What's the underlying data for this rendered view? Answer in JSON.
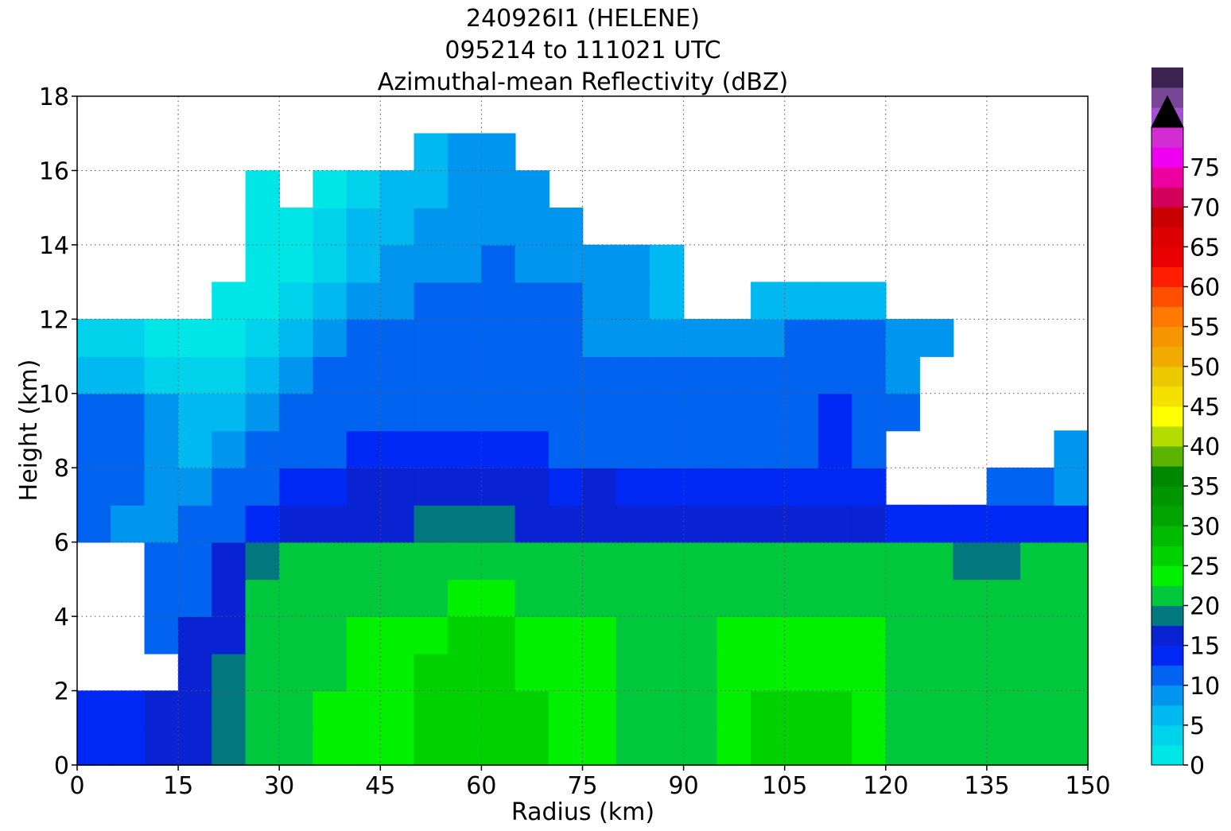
{
  "chart_data": {
    "type": "heatmap",
    "title_lines": [
      "240926I1 (HELENE)",
      "095214 to 111021 UTC",
      "Azimuthal-mean Reflectivity (dBZ)"
    ],
    "xlabel": "Radius (km)",
    "ylabel": "Height (km)",
    "xlim": [
      0,
      150
    ],
    "ylim": [
      0,
      18
    ],
    "xticks": [
      0,
      15,
      30,
      45,
      60,
      75,
      90,
      105,
      120,
      135,
      150
    ],
    "yticks": [
      0,
      2,
      4,
      6,
      8,
      10,
      12,
      14,
      16,
      18
    ],
    "grid": true,
    "colorbar": {
      "min": 0,
      "max": 80,
      "step": 2.5,
      "extend": "max",
      "extend_color": "#000000",
      "tick_values": [
        0,
        5,
        10,
        15,
        20,
        25,
        30,
        35,
        40,
        45,
        50,
        55,
        60,
        65,
        70,
        75
      ],
      "colors": [
        "#00e6e6",
        "#00d2ec",
        "#00b9f0",
        "#0096f0",
        "#0064f0",
        "#0028f5",
        "#0a23d2",
        "#00787d",
        "#00c83c",
        "#00f000",
        "#00d200",
        "#00bb00",
        "#00a500",
        "#009600",
        "#008700",
        "#5ab400",
        "#b4dc00",
        "#ffff00",
        "#f5e100",
        "#ebc800",
        "#f0aa00",
        "#f59600",
        "#ff7800",
        "#ff5000",
        "#ff1e00",
        "#eb0000",
        "#dc0000",
        "#c80000",
        "#d2005a",
        "#ee00a0",
        "#f000f0",
        "#d22dd2",
        "#a550d2",
        "#784696",
        "#3c2350"
      ]
    },
    "grid_resolution": {
      "dr_km": 5,
      "dz_km": 1
    },
    "heights_km": [
      0.5,
      1.5,
      2.5,
      3.5,
      4.5,
      5.5,
      6.5,
      7.5,
      8.5,
      9.5,
      10.5,
      11.5,
      12.5,
      13.5,
      14.5,
      15.5,
      16.5
    ],
    "radii_km": [
      2.5,
      7.5,
      12.5,
      17.5,
      22.5,
      27.5,
      32.5,
      37.5,
      42.5,
      47.5,
      52.5,
      57.5,
      62.5,
      67.5,
      72.5,
      77.5,
      82.5,
      87.5,
      92.5,
      97.5,
      102.5,
      107.5,
      112.5,
      117.5,
      122.5,
      127.5,
      132.5,
      137.5,
      142.5,
      147.5
    ],
    "reflectivity_dbz": [
      [
        14,
        14,
        15,
        17,
        19,
        20,
        21,
        23,
        24,
        24,
        25,
        26,
        26,
        25,
        24,
        23,
        20,
        21,
        22,
        23,
        25,
        27,
        26,
        24,
        20,
        20,
        21,
        20,
        20,
        20
      ],
      [
        13,
        13,
        15,
        17,
        19,
        20,
        21,
        23,
        24,
        24,
        25,
        26,
        26,
        25,
        24,
        23,
        20,
        21,
        22,
        23,
        25,
        27,
        26,
        24,
        22,
        22,
        21,
        20,
        20,
        20
      ],
      [
        null,
        null,
        null,
        17,
        19,
        20,
        21,
        22,
        24,
        24,
        25,
        25,
        25,
        24,
        23,
        23,
        21,
        22,
        22,
        23,
        24,
        24,
        24,
        23,
        22,
        22,
        22,
        22,
        22,
        22
      ],
      [
        null,
        null,
        12,
        15,
        17,
        20,
        21,
        22,
        23,
        23,
        24,
        25,
        25,
        24,
        23,
        23,
        22,
        22,
        22,
        23,
        24,
        24,
        23,
        23,
        22,
        22,
        22,
        22,
        22,
        22
      ],
      [
        null,
        null,
        11,
        12,
        16,
        20,
        20,
        21,
        22,
        22,
        22,
        23,
        23,
        22,
        22,
        22,
        21,
        21,
        21,
        22,
        22,
        22,
        22,
        22,
        21,
        21,
        21,
        21,
        21,
        21
      ],
      [
        null,
        null,
        10,
        11,
        15,
        19,
        20,
        20,
        21,
        21,
        21,
        21,
        21,
        20,
        20,
        20,
        20,
        20,
        20,
        20,
        20,
        20,
        20,
        20,
        20,
        20,
        19,
        19,
        20,
        20
      ],
      [
        10,
        9,
        8,
        10,
        12,
        13,
        15,
        16,
        17,
        17,
        18,
        18,
        18,
        17,
        16,
        16,
        15,
        15,
        15,
        15,
        15,
        15,
        15,
        15,
        14,
        14,
        13,
        13,
        14,
        14
      ],
      [
        12,
        11,
        9,
        8,
        10,
        12,
        13,
        14,
        15,
        15,
        16,
        16,
        15,
        15,
        14,
        15,
        13,
        13,
        13,
        13,
        13,
        13,
        13,
        13,
        null,
        null,
        null,
        11,
        10,
        9
      ],
      [
        12,
        11,
        9,
        7,
        8,
        10,
        11,
        12,
        13,
        13,
        13,
        13,
        13,
        13,
        12,
        12,
        12,
        12,
        12,
        12,
        12,
        12,
        13,
        12,
        null,
        null,
        null,
        null,
        null,
        8
      ],
      [
        10,
        10,
        8,
        6,
        7,
        9,
        10,
        11,
        12,
        12,
        12,
        12,
        12,
        12,
        11,
        11,
        11,
        11,
        11,
        11,
        12,
        12,
        13,
        12,
        10,
        null,
        null,
        null,
        null,
        null
      ],
      [
        7,
        6,
        4,
        3,
        4,
        7,
        9,
        10,
        11,
        11,
        11,
        11,
        12,
        11,
        11,
        10,
        10,
        10,
        10,
        10,
        11,
        11,
        11,
        11,
        9,
        null,
        null,
        null,
        null,
        null
      ],
      [
        4,
        3,
        2,
        1,
        2,
        4,
        6,
        8,
        10,
        10,
        11,
        11,
        11,
        10,
        10,
        9,
        9,
        9,
        9,
        9,
        9,
        10,
        10,
        10,
        9,
        8,
        null,
        null,
        null,
        null
      ],
      [
        null,
        null,
        null,
        null,
        0,
        2,
        4,
        6,
        8,
        9,
        10,
        10,
        10,
        10,
        10,
        9,
        9,
        6,
        null,
        null,
        6,
        6,
        7,
        7,
        null,
        null,
        null,
        null,
        null,
        null
      ],
      [
        null,
        null,
        null,
        null,
        null,
        0,
        2,
        4,
        6,
        8,
        9,
        9,
        10,
        9,
        9,
        8,
        8,
        7,
        null,
        null,
        null,
        null,
        null,
        null,
        null,
        null,
        null,
        null,
        null,
        null
      ],
      [
        null,
        null,
        null,
        null,
        null,
        0,
        1,
        3,
        5,
        7,
        8,
        9,
        9,
        9,
        8,
        null,
        null,
        null,
        null,
        null,
        null,
        null,
        null,
        null,
        null,
        null,
        null,
        null,
        null,
        null
      ],
      [
        null,
        null,
        null,
        null,
        null,
        0,
        null,
        1,
        3,
        5,
        7,
        8,
        9,
        9,
        null,
        null,
        null,
        null,
        null,
        null,
        null,
        null,
        null,
        null,
        null,
        null,
        null,
        null,
        null,
        null
      ],
      [
        null,
        null,
        null,
        null,
        null,
        null,
        null,
        null,
        null,
        null,
        6,
        8,
        9,
        null,
        null,
        null,
        null,
        null,
        null,
        null,
        null,
        null,
        null,
        null,
        null,
        null,
        null,
        null,
        null,
        null
      ]
    ]
  }
}
